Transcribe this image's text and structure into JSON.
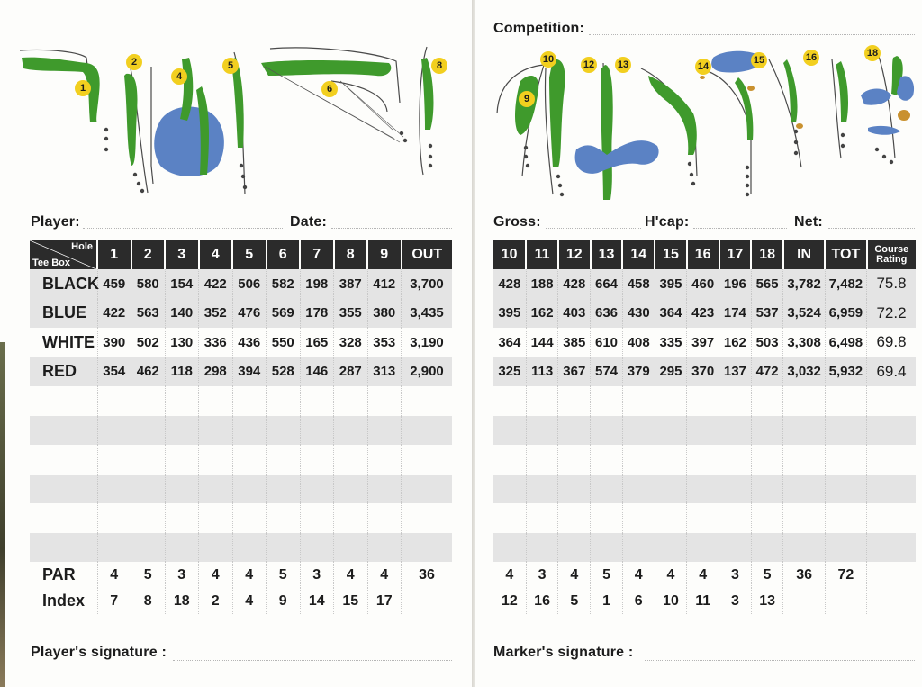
{
  "left": {
    "player_label": "Player:",
    "date_label": "Date:",
    "header": {
      "hole_label": "Hole",
      "teebox_label": "Tee Box",
      "holes": [
        "1",
        "2",
        "3",
        "4",
        "5",
        "6",
        "7",
        "8",
        "9"
      ],
      "out_label": "OUT"
    },
    "rows": [
      {
        "tee": "BLACK",
        "values": [
          "459",
          "580",
          "154",
          "422",
          "506",
          "582",
          "198",
          "387",
          "412"
        ],
        "total": "3,700"
      },
      {
        "tee": "BLUE",
        "values": [
          "422",
          "563",
          "140",
          "352",
          "476",
          "569",
          "178",
          "355",
          "380"
        ],
        "total": "3,435"
      },
      {
        "tee": "WHITE",
        "values": [
          "390",
          "502",
          "130",
          "336",
          "436",
          "550",
          "165",
          "328",
          "353"
        ],
        "total": "3,190"
      },
      {
        "tee": "RED",
        "values": [
          "354",
          "462",
          "118",
          "298",
          "394",
          "528",
          "146",
          "287",
          "313"
        ],
        "total": "2,900"
      }
    ],
    "par": {
      "label": "PAR",
      "values": [
        "4",
        "5",
        "3",
        "4",
        "4",
        "5",
        "3",
        "4",
        "4"
      ],
      "total": "36"
    },
    "index": {
      "label": "Index",
      "values": [
        "7",
        "8",
        "18",
        "2",
        "4",
        "9",
        "14",
        "15",
        "17"
      ],
      "total": ""
    },
    "signature_label": "Player's signature :",
    "hole_markers": [
      "1",
      "2",
      "4",
      "5",
      "6",
      "8"
    ]
  },
  "right": {
    "competition_label": "Competition:",
    "gross_label": "Gross:",
    "hcap_label": "H'cap:",
    "net_label": "Net:",
    "header": {
      "holes": [
        "10",
        "11",
        "12",
        "13",
        "14",
        "15",
        "16",
        "17",
        "18"
      ],
      "in_label": "IN",
      "tot_label": "TOT",
      "rating_label_1": "Course",
      "rating_label_2": "Rating"
    },
    "rows": [
      {
        "values": [
          "428",
          "188",
          "428",
          "664",
          "458",
          "395",
          "460",
          "196",
          "565"
        ],
        "in": "3,782",
        "tot": "7,482",
        "rating": "75.8"
      },
      {
        "values": [
          "395",
          "162",
          "403",
          "636",
          "430",
          "364",
          "423",
          "174",
          "537"
        ],
        "in": "3,524",
        "tot": "6,959",
        "rating": "72.2"
      },
      {
        "values": [
          "364",
          "144",
          "385",
          "610",
          "408",
          "335",
          "397",
          "162",
          "503"
        ],
        "in": "3,308",
        "tot": "6,498",
        "rating": "69.8"
      },
      {
        "values": [
          "325",
          "113",
          "367",
          "574",
          "379",
          "295",
          "370",
          "137",
          "472"
        ],
        "in": "3,032",
        "tot": "5,932",
        "rating": "69.4"
      }
    ],
    "par": {
      "values": [
        "4",
        "3",
        "4",
        "5",
        "4",
        "4",
        "4",
        "3",
        "5"
      ],
      "in": "36",
      "tot": "72"
    },
    "index": {
      "values": [
        "12",
        "16",
        "5",
        "1",
        "6",
        "10",
        "11",
        "3",
        "13"
      ]
    },
    "signature_label": "Marker's signature :",
    "hole_markers": [
      "9",
      "10",
      "12",
      "13",
      "14",
      "15",
      "16",
      "18"
    ]
  },
  "colors": {
    "header_bg": "#2b2b2b",
    "shade": "#e4e4e4",
    "fairway": "#3f9a2c",
    "water": "#5b82c4",
    "marker": "#f2cf1f"
  }
}
